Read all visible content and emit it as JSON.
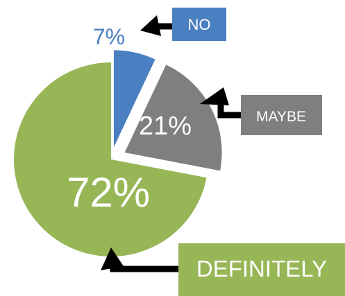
{
  "chart_data": {
    "type": "pie",
    "exploded": true,
    "slices": [
      {
        "label": "NO",
        "value": 7,
        "value_label": "7%",
        "color": "#4a7fc1",
        "label_text_color": "#4a7fc1"
      },
      {
        "label": "MAYBE",
        "value": 21,
        "value_label": "21%",
        "color": "#7f7f7f",
        "label_text_color": "#ffffff"
      },
      {
        "label": "DEFINITELY",
        "value": 72,
        "value_label": "72%",
        "color": "#97b656",
        "label_text_color": "#ffffff"
      }
    ],
    "callout_style": "colored label boxes with black arrows pointing to slices",
    "callout_text_color": "#ffffff",
    "arrow_color": "#000000"
  }
}
